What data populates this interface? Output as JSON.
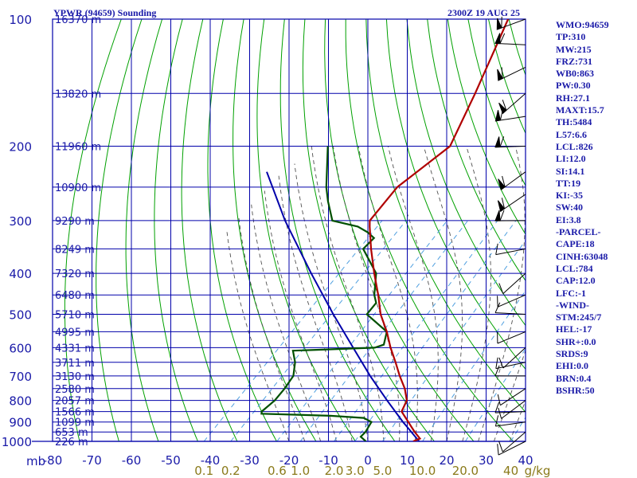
{
  "chart_data": {
    "type": "skew-t",
    "title_left": "YPWR (94659) Sounding",
    "title_right": "2300Z 19 AUG 25",
    "pressure_axis_label": "mb",
    "pressure_ticks": [
      "100",
      "200",
      "300",
      "400",
      "500",
      "600",
      "700",
      "800",
      "900",
      "1000"
    ],
    "temperature_ticks": [
      "-80",
      "-70",
      "-60",
      "-50",
      "-40",
      "-30",
      "-20",
      "-10",
      "0",
      "10",
      "20",
      "30",
      "40"
    ],
    "mixing_ratio_unit": "g/kg",
    "mixing_ratio_labels": [
      {
        "text": "0.1",
        "value": 0.1
      },
      {
        "text": "0.2",
        "value": 0.2
      },
      {
        "text": "0.6",
        "value": 0.6
      },
      {
        "text": "1.0",
        "value": 1.0
      },
      {
        "text": "2.0",
        "value": 2.0
      },
      {
        "text": "3.0",
        "value": 3.0
      },
      {
        "text": "5.0",
        "value": 5.0
      },
      {
        "text": "10.0",
        "value": 10.0
      },
      {
        "text": "20.0",
        "value": 20.0
      },
      {
        "text": "40",
        "value": 40
      }
    ],
    "height_labels": [
      {
        "p": 100,
        "text": "16370 m"
      },
      {
        "p": 150,
        "text": "13820 m"
      },
      {
        "p": 200,
        "text": "11960 m"
      },
      {
        "p": 250,
        "text": "10900 m"
      },
      {
        "p": 300,
        "text": "9290 m"
      },
      {
        "p": 350,
        "text": "8249 m"
      },
      {
        "p": 400,
        "text": "7320 m"
      },
      {
        "p": 450,
        "text": "6480 m"
      },
      {
        "p": 500,
        "text": "5710 m"
      },
      {
        "p": 550,
        "text": "4995 m"
      },
      {
        "p": 600,
        "text": "4331 m"
      },
      {
        "p": 650,
        "text": "3711 m"
      },
      {
        "p": 700,
        "text": "3130 m"
      },
      {
        "p": 750,
        "text": "2580 m"
      },
      {
        "p": 800,
        "text": "2057 m"
      },
      {
        "p": 850,
        "text": "1566 m"
      },
      {
        "p": 900,
        "text": "1099 m"
      },
      {
        "p": 950,
        "text": "653 m"
      },
      {
        "p": 1000,
        "text": "226 m"
      }
    ],
    "temperature_profile": [
      {
        "p": 1000,
        "t": 11.5
      },
      {
        "p": 985,
        "t": 12.5
      },
      {
        "p": 950,
        "t": 9.5
      },
      {
        "p": 850,
        "t": 1.0
      },
      {
        "p": 800,
        "t": -0.5
      },
      {
        "p": 750,
        "t": -4.0
      },
      {
        "p": 700,
        "t": -8.5
      },
      {
        "p": 650,
        "t": -13.0
      },
      {
        "p": 600,
        "t": -18.0
      },
      {
        "p": 550,
        "t": -23.0
      },
      {
        "p": 500,
        "t": -29.0
      },
      {
        "p": 450,
        "t": -34.5
      },
      {
        "p": 400,
        "t": -41.0
      },
      {
        "p": 350,
        "t": -48.0
      },
      {
        "p": 310,
        "t": -54.0
      },
      {
        "p": 300,
        "t": -55.5
      },
      {
        "p": 250,
        "t": -57.0
      },
      {
        "p": 200,
        "t": -54.0
      },
      {
        "p": 150,
        "t": -61.0
      },
      {
        "p": 110,
        "t": -69.0
      },
      {
        "p": 100,
        "t": -71.5
      }
    ],
    "dewpoint_profile": [
      {
        "p": 1000,
        "t": -0.5
      },
      {
        "p": 975,
        "t": -3.0
      },
      {
        "p": 950,
        "t": -3.0
      },
      {
        "p": 900,
        "t": -4.0
      },
      {
        "p": 880,
        "t": -7.0
      },
      {
        "p": 870,
        "t": -16.0
      },
      {
        "p": 860,
        "t": -34.0
      },
      {
        "p": 850,
        "t": -34.5
      },
      {
        "p": 800,
        "t": -34.0
      },
      {
        "p": 750,
        "t": -34.5
      },
      {
        "p": 700,
        "t": -35.5
      },
      {
        "p": 650,
        "t": -38.5
      },
      {
        "p": 610,
        "t": -42.0
      },
      {
        "p": 600,
        "t": -22.0
      },
      {
        "p": 590,
        "t": -20.5
      },
      {
        "p": 550,
        "t": -23.0
      },
      {
        "p": 500,
        "t": -32.5
      },
      {
        "p": 470,
        "t": -33.0
      },
      {
        "p": 450,
        "t": -35.5
      },
      {
        "p": 400,
        "t": -40.5
      },
      {
        "p": 350,
        "t": -50.0
      },
      {
        "p": 330,
        "t": -50.0
      },
      {
        "p": 320,
        "t": -53.0
      },
      {
        "p": 310,
        "t": -57.0
      },
      {
        "p": 300,
        "t": -65.0
      },
      {
        "p": 270,
        "t": -71.0
      },
      {
        "p": 250,
        "t": -75.0
      },
      {
        "p": 200,
        "t": -85.0
      }
    ],
    "parcel_profile": [
      {
        "p": 1000,
        "t": 13.0
      },
      {
        "p": 900,
        "t": 4.0
      },
      {
        "p": 800,
        "t": -5.5
      },
      {
        "p": 700,
        "t": -16.0
      },
      {
        "p": 600,
        "t": -27.5
      },
      {
        "p": 500,
        "t": -41.0
      },
      {
        "p": 400,
        "t": -57.0
      },
      {
        "p": 300,
        "t": -77.0
      },
      {
        "p": 230,
        "t": -94.0
      }
    ],
    "ranges": {
      "temperature": [
        -80,
        40
      ],
      "pressure": [
        1000,
        100
      ]
    },
    "wind_barbs_right_side": true,
    "colors": {
      "frame": "#0000aa",
      "temperature": "#b00000",
      "dewpoint": "#005000",
      "parcel": "#0000aa",
      "dry_adiabat": "#00a000",
      "moist_adiabat": "#505050",
      "mixing_ratio": "#50a0e0",
      "mixing_ratio_label": "#8a7a1a"
    }
  },
  "indices": [
    "WMO:94659",
    "TP:310",
    "MW:215",
    "FRZ:731",
    "WB0:863",
    "PW:0.30",
    "RH:27.1",
    "MAXT:15.7",
    "TH:5484",
    "L57:6.6",
    "LCL:826",
    "LI:12.0",
    "SI:14.1",
    "TT:19",
    "KI:-35",
    "SW:40",
    "EI:3.8",
    "-PARCEL-",
    "CAPE:18",
    "CINH:63048",
    "LCL:784",
    "CAP:12.0",
    "LFC:-1",
    "-WIND-",
    "STM:245/7",
    "HEL:-17",
    "SHR+:0.0",
    "SRDS:9",
    "EHI:0.0",
    "BRN:0.4",
    "BSHR:50"
  ]
}
